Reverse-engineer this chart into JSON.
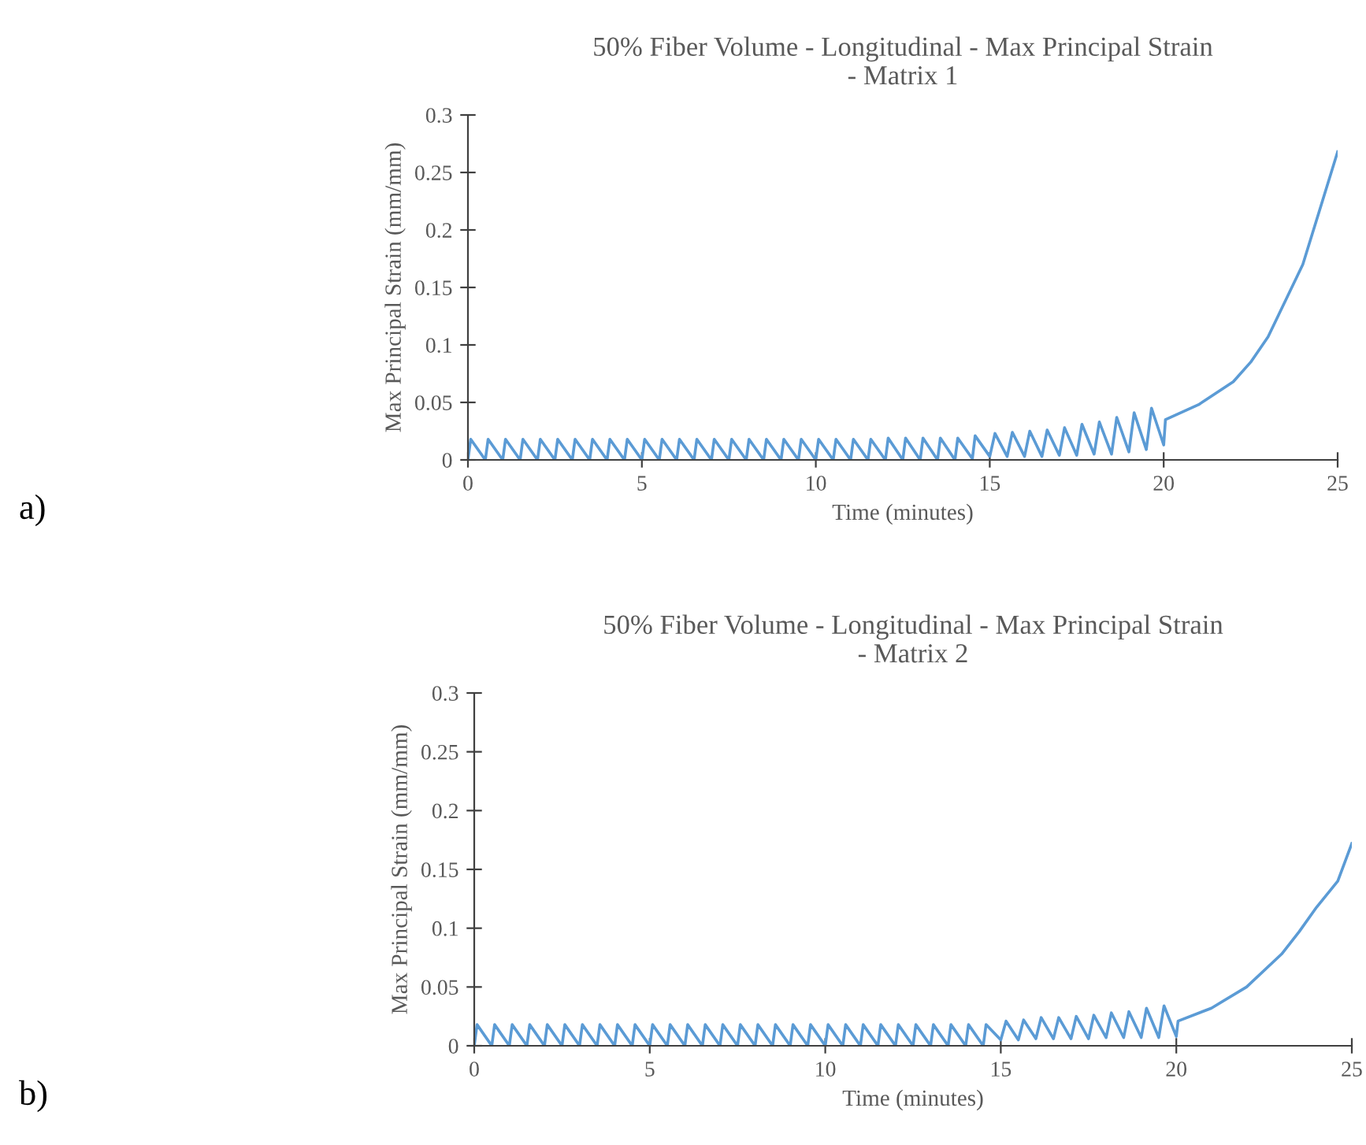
{
  "chart_data": [
    {
      "type": "line",
      "title": "50% Fiber Volume - Longitudinal - Max Principal Strain\n- Matrix 1",
      "xlabel": "Time (minutes)",
      "ylabel": "Max Principal Strain (mm/mm)",
      "annotations": [
        "a)"
      ],
      "xlim": [
        0,
        25
      ],
      "xticks": [
        0,
        5,
        10,
        15,
        20,
        25
      ],
      "ylim": [
        0,
        0.3
      ],
      "yticks": [
        0,
        0.05,
        0.1,
        0.15,
        0.2,
        0.25,
        0.3
      ],
      "series": [
        {
          "color": "#5b9bd5",
          "x": [
            0,
            0.08,
            0.5,
            0.58,
            1,
            1.08,
            1.5,
            1.58,
            2,
            2.08,
            2.5,
            2.58,
            3,
            3.08,
            3.5,
            3.58,
            4,
            4.08,
            4.5,
            4.58,
            5,
            5.08,
            5.5,
            5.58,
            6,
            6.08,
            6.5,
            6.58,
            7,
            7.08,
            7.5,
            7.58,
            8,
            8.08,
            8.5,
            8.58,
            9,
            9.08,
            9.5,
            9.58,
            10,
            10.08,
            10.5,
            10.58,
            11,
            11.08,
            11.5,
            11.58,
            12,
            12.08,
            12.5,
            12.58,
            13,
            13.08,
            13.5,
            13.58,
            14,
            14.08,
            14.5,
            14.58,
            15,
            15.15,
            15.5,
            15.65,
            16,
            16.15,
            16.5,
            16.65,
            17,
            17.15,
            17.5,
            17.65,
            18,
            18.15,
            18.5,
            18.65,
            19,
            19.15,
            19.5,
            19.65,
            20,
            20.05,
            21,
            22,
            22.5,
            23,
            24,
            25
          ],
          "values": [
            0,
            0.018,
            0,
            0.018,
            0,
            0.018,
            0,
            0.018,
            0,
            0.018,
            0,
            0.018,
            0,
            0.018,
            0,
            0.018,
            0,
            0.018,
            0,
            0.018,
            0,
            0.018,
            0,
            0.018,
            0,
            0.018,
            0,
            0.018,
            0,
            0.018,
            0,
            0.018,
            0,
            0.018,
            0,
            0.018,
            0,
            0.018,
            0,
            0.018,
            0,
            0.018,
            0,
            0.018,
            0,
            0.018,
            0,
            0.018,
            0,
            0.019,
            0,
            0.019,
            0,
            0.019,
            0,
            0.019,
            0,
            0.019,
            0.001,
            0.021,
            0.003,
            0.023,
            0.003,
            0.024,
            0.003,
            0.025,
            0.003,
            0.026,
            0.004,
            0.028,
            0.004,
            0.031,
            0.005,
            0.033,
            0.005,
            0.037,
            0.007,
            0.041,
            0.009,
            0.045,
            0.013,
            0.035,
            0.048,
            0.068,
            0.085,
            0.107,
            0.17,
            0.268
          ]
        }
      ]
    },
    {
      "type": "line",
      "title": "50% Fiber Volume - Longitudinal - Max Principal Strain\n- Matrix 2",
      "xlabel": "Time (minutes)",
      "ylabel": "Max Principal Strain (mm/mm)",
      "annotations": [
        "b)"
      ],
      "xlim": [
        0,
        25
      ],
      "xticks": [
        0,
        5,
        10,
        15,
        20,
        25
      ],
      "ylim": [
        0,
        0.3
      ],
      "yticks": [
        0,
        0.05,
        0.1,
        0.15,
        0.2,
        0.25,
        0.3
      ],
      "series": [
        {
          "color": "#5b9bd5",
          "x": [
            0,
            0.08,
            0.5,
            0.58,
            1,
            1.08,
            1.5,
            1.58,
            2,
            2.08,
            2.5,
            2.58,
            3,
            3.08,
            3.5,
            3.58,
            4,
            4.08,
            4.5,
            4.58,
            5,
            5.08,
            5.5,
            5.58,
            6,
            6.08,
            6.5,
            6.58,
            7,
            7.08,
            7.5,
            7.58,
            8,
            8.08,
            8.5,
            8.58,
            9,
            9.08,
            9.5,
            9.58,
            10,
            10.08,
            10.5,
            10.58,
            11,
            11.08,
            11.5,
            11.58,
            12,
            12.08,
            12.5,
            12.58,
            13,
            13.08,
            13.5,
            13.58,
            14,
            14.08,
            14.5,
            14.58,
            15,
            15.15,
            15.5,
            15.65,
            16,
            16.15,
            16.5,
            16.65,
            17,
            17.15,
            17.5,
            17.65,
            18,
            18.15,
            18.5,
            18.65,
            19,
            19.15,
            19.5,
            19.65,
            20,
            20.05,
            21,
            22,
            23,
            23.5,
            24,
            24.6,
            25
          ],
          "values": [
            0,
            0.018,
            0,
            0.018,
            0,
            0.018,
            0,
            0.018,
            0,
            0.018,
            0,
            0.018,
            0,
            0.018,
            0,
            0.018,
            0,
            0.018,
            0,
            0.018,
            0,
            0.018,
            0,
            0.018,
            0,
            0.018,
            0,
            0.018,
            0,
            0.018,
            0,
            0.018,
            0,
            0.018,
            0,
            0.018,
            0,
            0.018,
            0,
            0.018,
            0,
            0.018,
            0,
            0.018,
            0,
            0.018,
            0,
            0.018,
            0,
            0.018,
            0,
            0.018,
            0,
            0.018,
            0,
            0.018,
            0,
            0.018,
            0,
            0.018,
            0.005,
            0.021,
            0.005,
            0.022,
            0.006,
            0.024,
            0.006,
            0.024,
            0.006,
            0.025,
            0.006,
            0.026,
            0.007,
            0.028,
            0.007,
            0.029,
            0.007,
            0.032,
            0.007,
            0.034,
            0.008,
            0.021,
            0.032,
            0.05,
            0.078,
            0.097,
            0.118,
            0.14,
            0.172
          ]
        }
      ]
    }
  ]
}
